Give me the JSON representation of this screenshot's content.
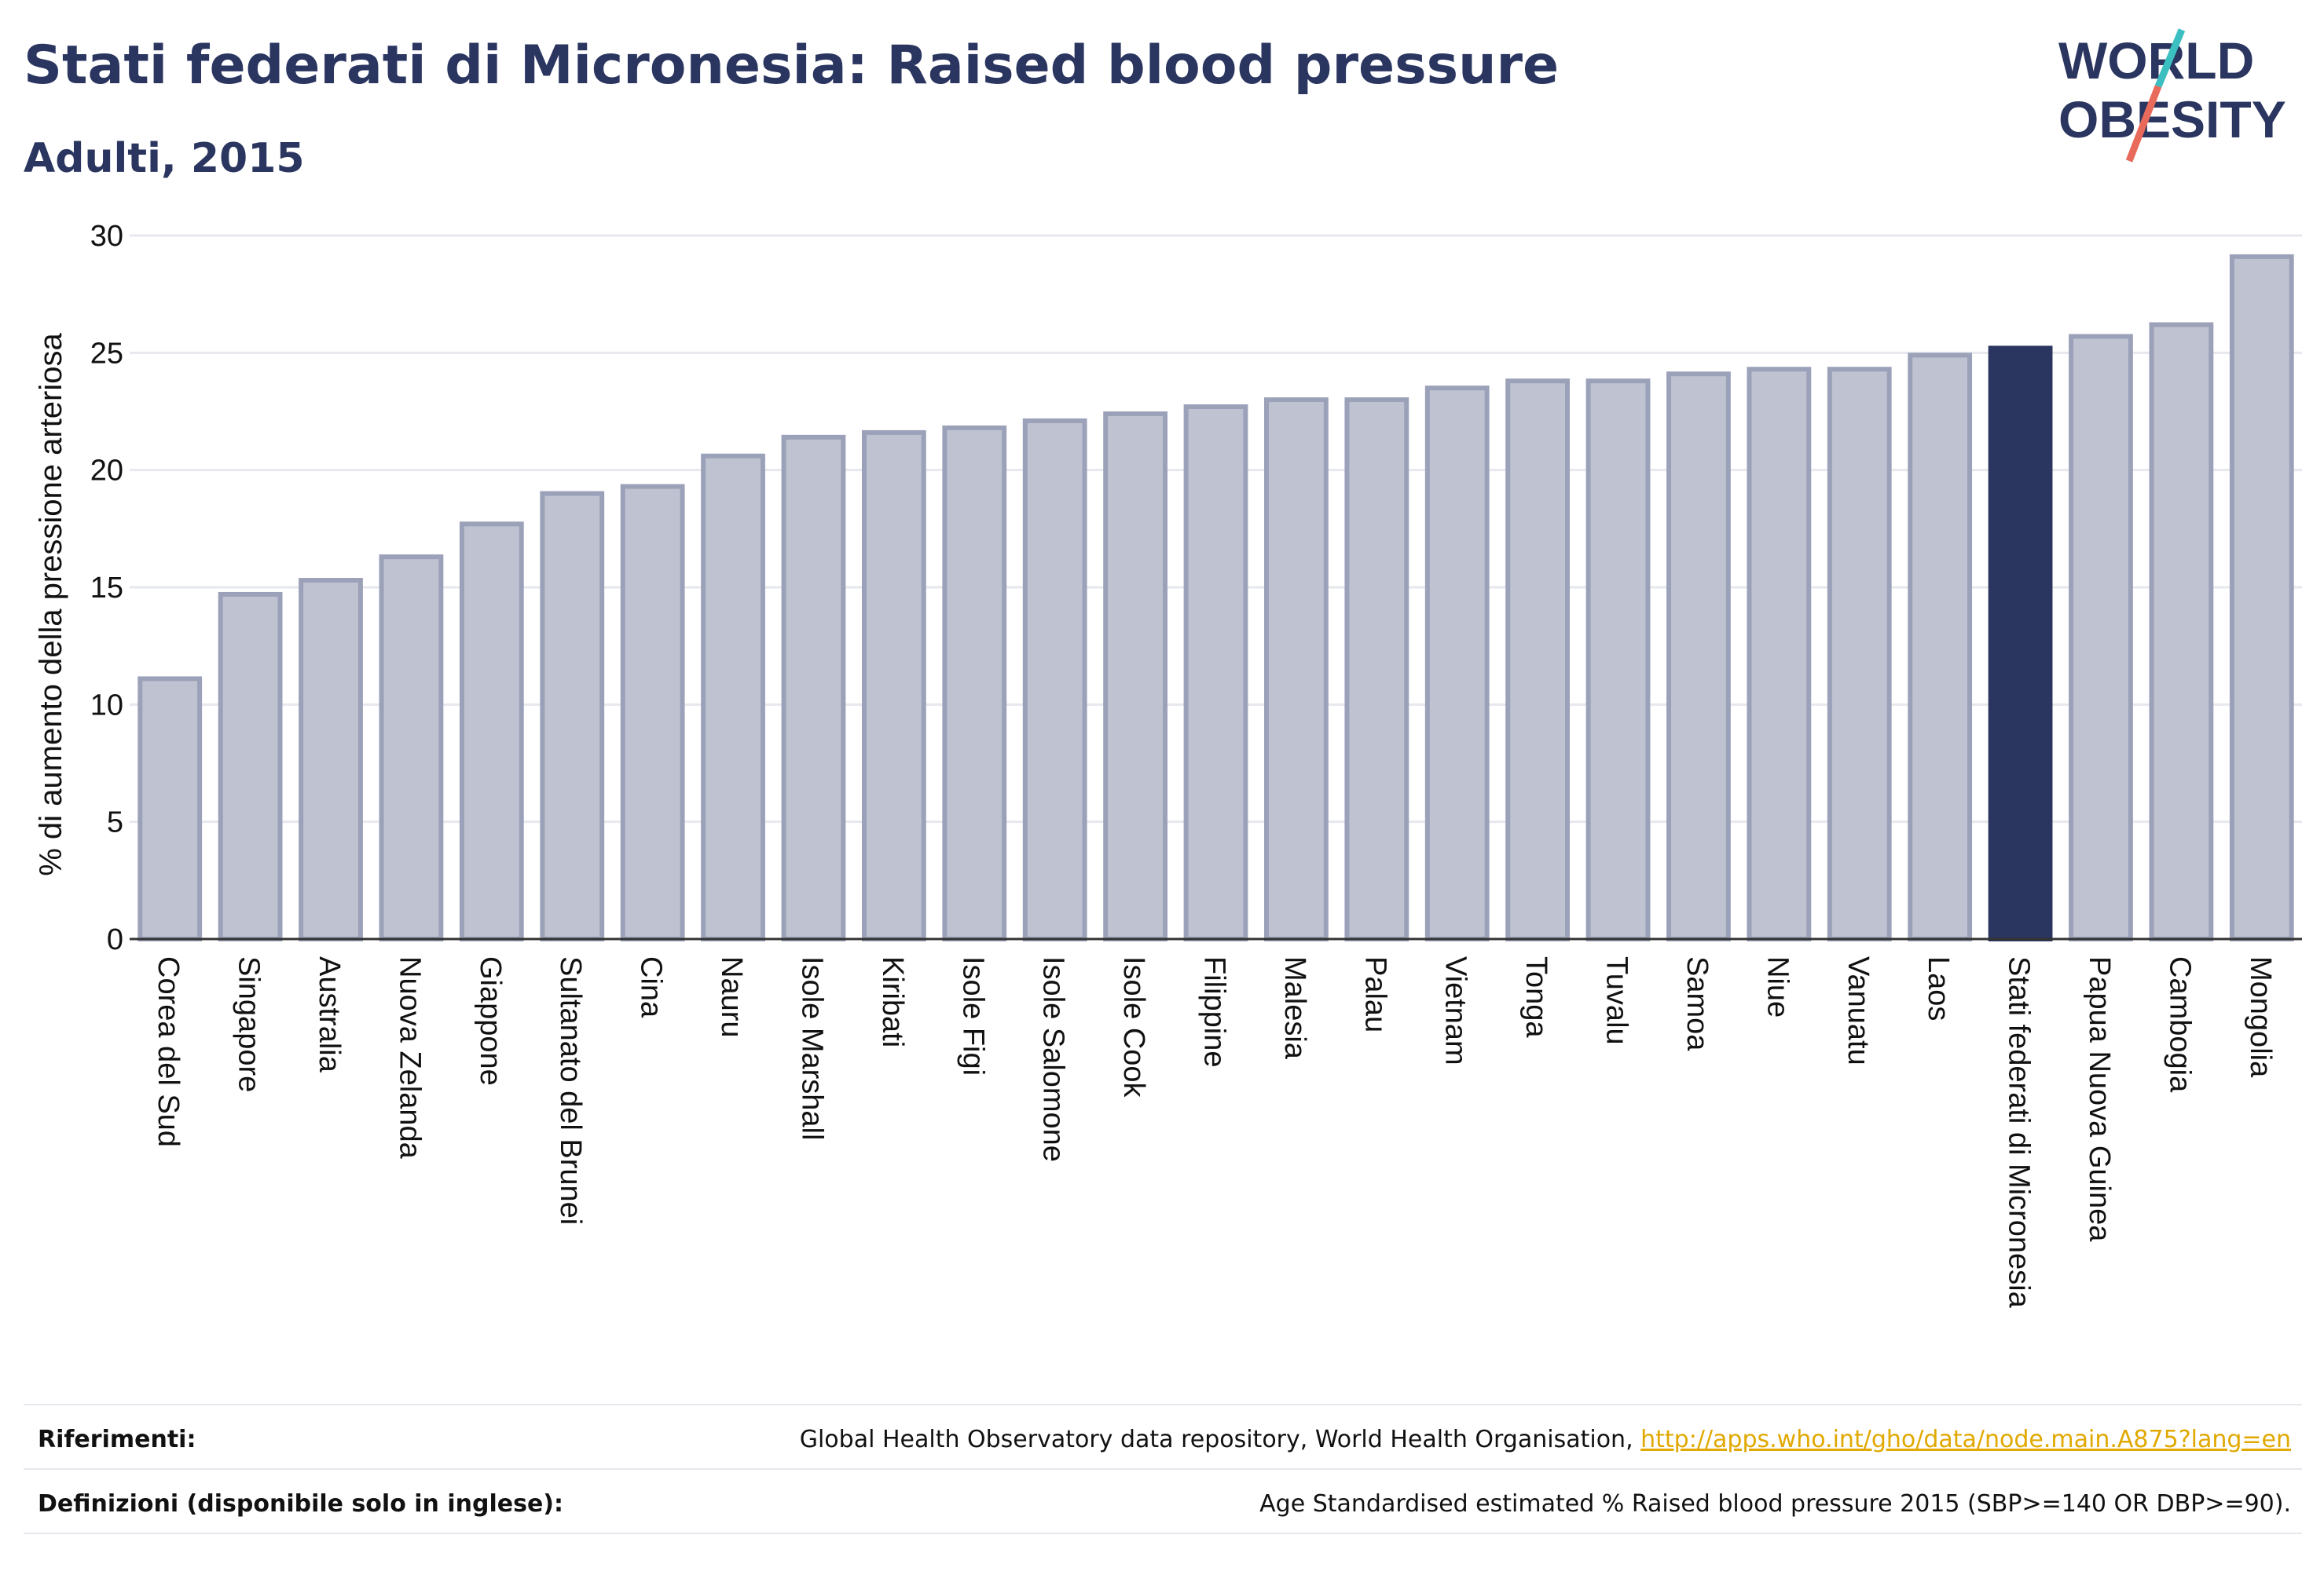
{
  "header": {
    "title": "Stati federati di Micronesia: Raised blood pressure",
    "subtitle": "Adulti, 2015"
  },
  "logo": {
    "line1": "WORLD",
    "line2": "OBESITY",
    "colors": {
      "text": "#2a3560",
      "slash_teal": "#3bbfc0",
      "slash_red": "#e86a5a"
    }
  },
  "footer": {
    "references_label": "Riferimenti:",
    "references_text": "Global Health Observatory data repository, World Health Organisation, ",
    "references_link": "http://apps.who.int/gho/data/node.main.A875?lang=en",
    "definitions_label": "Definizioni (disponibile solo in inglese):",
    "definitions_text": "Age Standardised estimated % Raised blood pressure 2015 (SBP>=140 OR DBP>=90)."
  },
  "chart_data": {
    "type": "bar",
    "ylabel": "% di aumento della pressione arteriosa",
    "xlabel": "",
    "ylim": [
      0,
      30
    ],
    "yticks": [
      0,
      5,
      10,
      15,
      20,
      25,
      30
    ],
    "grid": true,
    "highlight": "Stati federati di Micronesia",
    "colors": {
      "bar_fill": "#bfc3d1",
      "bar_stroke": "#9ba1b8",
      "highlight_fill": "#2a3560",
      "grid": "#e6e8ee",
      "axis": "#333333"
    },
    "categories": [
      "Corea del Sud",
      "Singapore",
      "Australia",
      "Nuova Zelanda",
      "Giappone",
      "Sultanato del Brunei",
      "Cina",
      "Nauru",
      "Isole Marshall",
      "Kiribati",
      "Isole Figi",
      "Isole Salomone",
      "Isole Cook",
      "Filippine",
      "Malesia",
      "Palau",
      "Vietnam",
      "Tonga",
      "Tuvalu",
      "Samoa",
      "Niue",
      "Vanuatu",
      "Laos",
      "Stati federati di Micronesia",
      "Papua Nuova Guinea",
      "Cambogia",
      "Mongolia"
    ],
    "values": [
      11.1,
      14.7,
      15.3,
      16.3,
      17.7,
      19.0,
      19.3,
      20.6,
      21.4,
      21.6,
      21.8,
      22.1,
      22.4,
      22.7,
      23.0,
      23.0,
      23.5,
      23.8,
      23.8,
      24.1,
      24.3,
      24.3,
      24.9,
      25.2,
      25.7,
      26.2,
      29.1
    ]
  }
}
